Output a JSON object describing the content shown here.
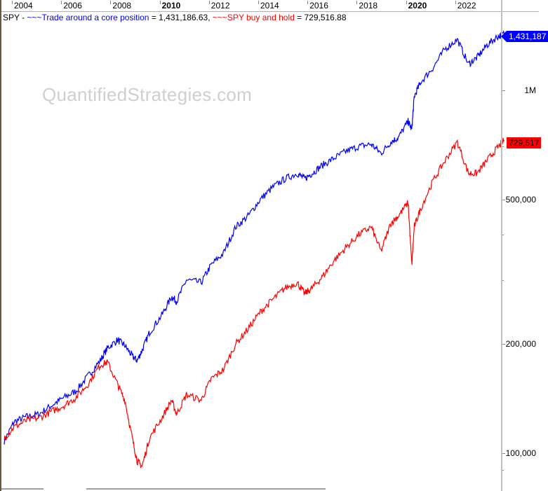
{
  "chart_data": {
    "type": "line",
    "title": "SPY - ~~~Trade around a core position = 1,431,186.63, ~~~SPY buy and hold = 729,516.88",
    "watermark": "QuantifiedStrategies.com",
    "xlabel": "",
    "ylabel": "",
    "yscale": "log",
    "x_tick_labels": [
      "2004",
      "2006",
      "2008",
      "2010",
      "2012",
      "2014",
      "2016",
      "2018",
      "2020",
      "2022"
    ],
    "bold_x_ticks": [
      "2010",
      "2020"
    ],
    "y_tick_labels": [
      "100,000",
      "200,000",
      "500,000",
      "1M"
    ],
    "ylim": [
      85000,
      1550000
    ],
    "legend_position": "top-left",
    "last_value_badges": [
      {
        "series": "Trade around a core position",
        "label": "1,431,187",
        "color": "#0000ff"
      },
      {
        "series": "SPY buy and hold",
        "label": "729,517",
        "color": "#ff0000"
      }
    ],
    "x": [
      2003.6,
      2004.0,
      2004.5,
      2005.0,
      2005.5,
      2006.0,
      2006.5,
      2007.0,
      2007.5,
      2007.8,
      2008.2,
      2008.5,
      2008.8,
      2009.0,
      2009.2,
      2009.5,
      2010.0,
      2010.4,
      2010.6,
      2011.0,
      2011.6,
      2012.0,
      2012.5,
      2013.0,
      2013.5,
      2014.0,
      2014.5,
      2015.0,
      2015.5,
      2015.8,
      2016.1,
      2016.5,
      2017.0,
      2017.5,
      2018.0,
      2018.5,
      2018.9,
      2019.3,
      2019.6,
      2020.0,
      2020.15,
      2020.25,
      2020.5,
      2021.0,
      2021.5,
      2022.0,
      2022.45,
      2022.8,
      2023.2,
      2023.6,
      2023.9
    ],
    "series": [
      {
        "name": "Trade around a core position",
        "color": "#0000ff",
        "final_value": 1431186.63,
        "values": [
          108000,
          122000,
          126000,
          128000,
          135000,
          142000,
          148000,
          163000,
          180000,
          195000,
          205000,
          198000,
          185000,
          180000,
          192000,
          215000,
          240000,
          270000,
          262000,
          300000,
          295000,
          330000,
          355000,
          420000,
          450000,
          500000,
          540000,
          570000,
          590000,
          570000,
          590000,
          620000,
          650000,
          680000,
          700000,
          710000,
          670000,
          720000,
          740000,
          820000,
          780000,
          960000,
          1050000,
          1150000,
          1300000,
          1380000,
          1180000,
          1230000,
          1330000,
          1400000,
          1431187
        ]
      },
      {
        "name": "SPY buy and hold",
        "color": "#ff0000",
        "final_value": 729516.88,
        "values": [
          110000,
          118000,
          123000,
          125000,
          130000,
          135000,
          142000,
          155000,
          175000,
          178000,
          155000,
          140000,
          110000,
          95000,
          92000,
          110000,
          125000,
          140000,
          128000,
          145000,
          140000,
          160000,
          170000,
          200000,
          220000,
          245000,
          265000,
          285000,
          295000,
          275000,
          285000,
          305000,
          340000,
          370000,
          400000,
          420000,
          360000,
          430000,
          450000,
          490000,
          330000,
          420000,
          470000,
          560000,
          640000,
          720000,
          590000,
          590000,
          640000,
          690000,
          729517
        ]
      }
    ]
  },
  "header": {
    "ticker_prefix": "SPY - ",
    "series1_label": "~~~Trade around a core position",
    "series1_value": " = 1,431,186.63, ",
    "series2_label": "~~~SPY buy and hold",
    "series2_value": " = 729,516.88"
  }
}
